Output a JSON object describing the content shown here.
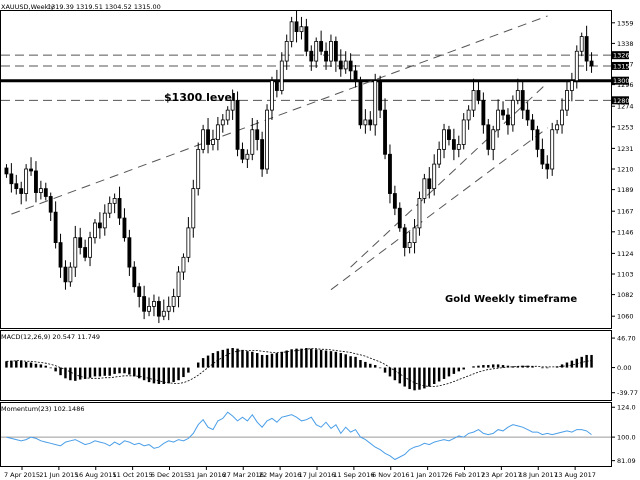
{
  "header": {
    "symbol_text": "XAUUSD,Weekly",
    "ohlc_text": "1319.39 1319.51 1304.52 1315.00"
  },
  "annotations": {
    "level_label": "$1300 level",
    "timeframe_label": "Gold Weekly timeframe"
  },
  "colors": {
    "candle": "#000000",
    "grid_dash": "#555555",
    "momentum_line": "#4a9ee8",
    "momentum_ref": "#9a9a9a",
    "price_marker_bg": "#000000"
  },
  "chart_data": [
    {
      "type": "candlestick",
      "title": "",
      "ylim": [
        1050,
        1370
      ],
      "y_ticks": [
        "1359",
        "1338",
        "1317",
        "1296",
        "1274",
        "1253",
        "1231",
        "1210",
        "1189",
        "1167",
        "1146",
        "1124",
        "1103",
        "1082",
        "1060"
      ],
      "price_markers": [
        "1326",
        "1315",
        "1300",
        "1280"
      ],
      "horizontal_levels": [
        {
          "value": 1300,
          "style": "solid-thick"
        },
        {
          "value": 1326,
          "style": "dashed"
        },
        {
          "value": 1315,
          "style": "dashed"
        },
        {
          "value": 1280,
          "style": "dashed"
        }
      ],
      "channel_lines": [
        {
          "from": [
            1,
            1164
          ],
          "to": [
            106,
            1366
          ],
          "style": "dashed"
        },
        {
          "from": [
            66,
            1087
          ],
          "to": [
            106,
            1252
          ],
          "style": "dashed"
        },
        {
          "from": [
            70,
            1110
          ],
          "to": [
            106,
            1298
          ],
          "style": "dashed"
        }
      ],
      "x_labels": [
        "7 Apr 2015",
        "21 Jun 2015",
        "16 Aug 2015",
        "11 Oct 2015",
        "6 Dec 2015",
        "31 Jan 2016",
        "27 Mar 2016",
        "22 May 2016",
        "17 Jul 2016",
        "11 Sep 2016",
        "6 Nov 2016",
        "1 Jan 2017",
        "26 Feb 2017",
        "23 Apr 2017",
        "18 Jun 2017",
        "13 Aug 2017"
      ],
      "close": [
        1205,
        1195,
        1190,
        1185,
        1210,
        1208,
        1186,
        1190,
        1182,
        1166,
        1135,
        1110,
        1095,
        1110,
        1140,
        1130,
        1120,
        1140,
        1155,
        1150,
        1165,
        1175,
        1180,
        1160,
        1140,
        1110,
        1090,
        1080,
        1065,
        1070,
        1075,
        1060,
        1065,
        1070,
        1080,
        1105,
        1120,
        1150,
        1190,
        1230,
        1250,
        1235,
        1240,
        1255,
        1260,
        1270,
        1280,
        1230,
        1220,
        1225,
        1250,
        1240,
        1210,
        1270,
        1300,
        1290,
        1320,
        1340,
        1360,
        1350,
        1355,
        1330,
        1320,
        1340,
        1330,
        1320,
        1340,
        1320,
        1312,
        1320,
        1310,
        1300,
        1255,
        1260,
        1255,
        1300,
        1270,
        1225,
        1185,
        1170,
        1150,
        1130,
        1135,
        1150,
        1180,
        1200,
        1190,
        1215,
        1230,
        1250,
        1240,
        1230,
        1235,
        1260,
        1270,
        1290,
        1280,
        1255,
        1230,
        1250,
        1270,
        1265,
        1255,
        1280,
        1290,
        1270,
        1260,
        1250,
        1230,
        1215,
        1210,
        1250,
        1255,
        1270,
        1290,
        1300,
        1330,
        1345,
        1320,
        1315
      ]
    },
    {
      "type": "histogram",
      "title": "MACD(12,26,9) 20.547 11.749",
      "y_ticks": [
        "46.70",
        "0.00",
        "-39.77"
      ],
      "ylim": [
        -45,
        50
      ],
      "values": [
        10,
        11,
        11,
        11,
        9,
        8,
        6,
        5,
        3,
        -1,
        -6,
        -12,
        -17,
        -20,
        -21,
        -19,
        -18,
        -16,
        -14,
        -14,
        -13,
        -13,
        -10,
        -9,
        -9,
        -11,
        -14,
        -17,
        -20,
        -23,
        -25,
        -26,
        -26,
        -25,
        -23,
        -20,
        -15,
        -8,
        0,
        8,
        15,
        19,
        23,
        26,
        28,
        30,
        31,
        30,
        28,
        26,
        25,
        23,
        20,
        20,
        22,
        23,
        25,
        27,
        29,
        30,
        30,
        31,
        30,
        29,
        28,
        27,
        26,
        25,
        23,
        21,
        18,
        17,
        12,
        9,
        6,
        4,
        -1,
        -8,
        -14,
        -20,
        -25,
        -30,
        -34,
        -36,
        -35,
        -33,
        -30,
        -26,
        -22,
        -18,
        -14,
        -10,
        -6,
        -3,
        0,
        2,
        3,
        4,
        4,
        5,
        5,
        4,
        3,
        2,
        2,
        3,
        3,
        2,
        0,
        -1,
        -1,
        0,
        2,
        5,
        8,
        11,
        14,
        17,
        20,
        20
      ],
      "signal_line_values": [
        10,
        10,
        11,
        11,
        10,
        10,
        9,
        8,
        7,
        5,
        3,
        0,
        -3,
        -7,
        -11,
        -14,
        -16,
        -17,
        -17,
        -17,
        -16,
        -16,
        -15,
        -14,
        -13,
        -13,
        -13,
        -14,
        -15,
        -17,
        -19,
        -21,
        -23,
        -24,
        -25,
        -25,
        -24,
        -21,
        -17,
        -12,
        -6,
        0,
        6,
        12,
        16,
        21,
        24,
        26,
        27,
        27,
        27,
        27,
        26,
        25,
        24,
        24,
        24,
        25,
        26,
        27,
        28,
        29,
        30,
        30,
        29,
        29,
        28,
        27,
        26,
        25,
        24,
        22,
        20,
        18,
        15,
        12,
        9,
        5,
        0,
        -5,
        -10,
        -15,
        -20,
        -24,
        -27,
        -29,
        -30,
        -30,
        -29,
        -27,
        -25,
        -22,
        -19,
        -16,
        -13,
        -10,
        -7,
        -5,
        -3,
        -2,
        -1,
        0,
        1,
        1,
        2,
        2,
        2,
        2,
        2,
        1,
        1,
        1,
        1,
        2,
        3,
        4,
        6,
        8,
        10,
        11
      ]
    },
    {
      "type": "line",
      "title": "Momentum(23) 102.1486",
      "y_ticks": [
        "124.0",
        "100.0",
        "81.09"
      ],
      "ylim": [
        80,
        125
      ],
      "reference_line": 100,
      "values": [
        100,
        99,
        98,
        97,
        98,
        100,
        99,
        97,
        96,
        95,
        94,
        93,
        96,
        97,
        98,
        96,
        94,
        95,
        97,
        96,
        95,
        93,
        96,
        94,
        97,
        96,
        94,
        95,
        93,
        94,
        91,
        92,
        95,
        97,
        96,
        98,
        97,
        99,
        103,
        110,
        114,
        108,
        106,
        113,
        115,
        120,
        117,
        113,
        116,
        113,
        118,
        112,
        108,
        113,
        115,
        112,
        116,
        117,
        118,
        116,
        113,
        114,
        116,
        110,
        108,
        112,
        107,
        110,
        103,
        108,
        104,
        106,
        100,
        98,
        95,
        92,
        90,
        87,
        85,
        82,
        84,
        86,
        90,
        92,
        93,
        95,
        94,
        96,
        97,
        98,
        97,
        99,
        101,
        100,
        103,
        104,
        106,
        103,
        102,
        103,
        106,
        105,
        108,
        110,
        109,
        108,
        106,
        104,
        104,
        102,
        103,
        102,
        103,
        104,
        105,
        104,
        106,
        106,
        105,
        102
      ]
    }
  ]
}
